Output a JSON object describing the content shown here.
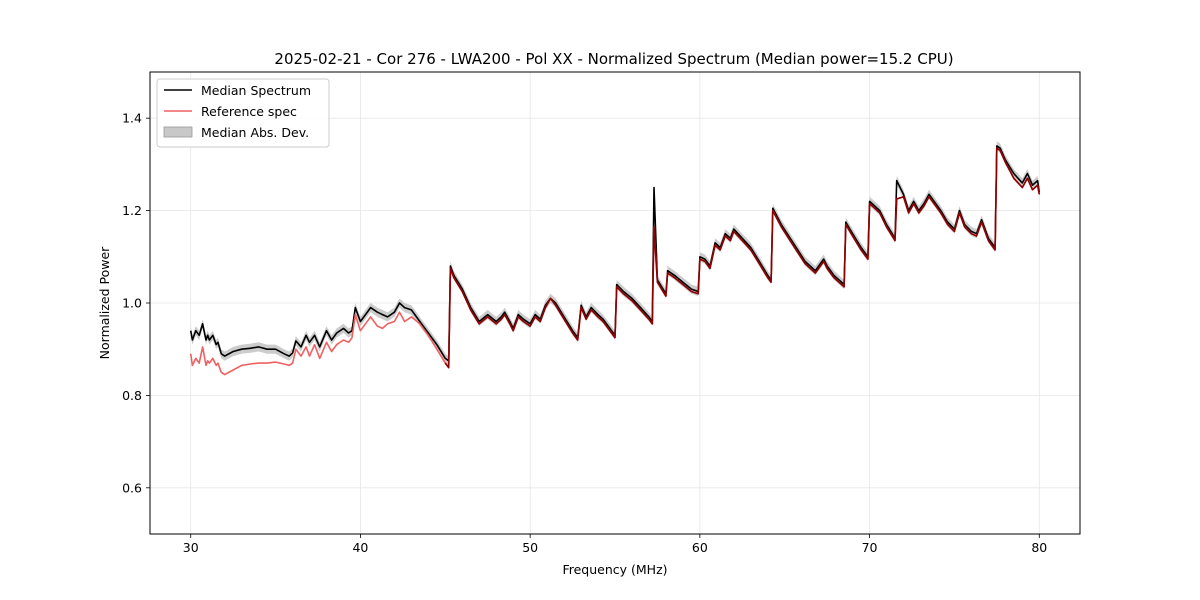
{
  "chart_data": {
    "type": "line",
    "title": "2025-02-21 - Cor 276 - LWA200 - Pol XX - Normalized Spectrum (Median power=15.2 CPU)",
    "xlabel": "Frequency (MHz)",
    "ylabel": "Normalized Power",
    "xlim": [
      27.6,
      82.4
    ],
    "ylim": [
      0.5,
      1.5
    ],
    "xticks": [
      30,
      40,
      50,
      60,
      70,
      80
    ],
    "yticks": [
      0.6,
      0.8,
      1.0,
      1.2,
      1.4
    ],
    "xtick_labels": [
      "30",
      "40",
      "50",
      "60",
      "70",
      "80"
    ],
    "ytick_labels": [
      "0.6",
      "0.8",
      "1.0",
      "1.2",
      "1.4"
    ],
    "grid": true,
    "legend_position": "top-left",
    "colors": {
      "median": "#000000",
      "reference": "#f06060",
      "reference_overlap": "#8b0000",
      "mad_band": "#b0b0b0"
    },
    "legend": [
      {
        "label": "Median Spectrum",
        "kind": "line",
        "color": "#000000"
      },
      {
        "label": "Reference spec",
        "kind": "line",
        "color": "#f06060"
      },
      {
        "label": "Median Abs. Dev.",
        "kind": "patch",
        "color": "#c8c8c8"
      }
    ],
    "series": [
      {
        "name": "Median Spectrum",
        "x": [
          30.0,
          30.1,
          30.3,
          30.5,
          30.7,
          30.9,
          31.0,
          31.1,
          31.3,
          31.5,
          31.6,
          31.8,
          32.0,
          32.5,
          33.0,
          33.5,
          34.0,
          34.5,
          35.0,
          35.5,
          35.8,
          36.0,
          36.2,
          36.5,
          36.8,
          37.0,
          37.3,
          37.6,
          38.0,
          38.3,
          38.6,
          39.0,
          39.3,
          39.5,
          39.7,
          40.0,
          40.3,
          40.6,
          41.0,
          41.3,
          41.6,
          42.0,
          42.3,
          42.6,
          43.0,
          43.5,
          44.0,
          44.5,
          45.0,
          45.2,
          45.3,
          45.5,
          46.0,
          46.5,
          47.0,
          47.5,
          48.0,
          48.3,
          48.5,
          48.8,
          49.0,
          49.3,
          49.6,
          50.0,
          50.3,
          50.6,
          50.9,
          51.2,
          51.5,
          52.0,
          52.5,
          52.8,
          53.0,
          53.3,
          53.6,
          54.0,
          54.3,
          54.6,
          55.0,
          55.1,
          55.5,
          56.0,
          56.5,
          57.0,
          57.2,
          57.3,
          57.5,
          58.0,
          58.1,
          58.5,
          59.0,
          59.5,
          59.9,
          60.0,
          60.3,
          60.6,
          60.9,
          61.2,
          61.5,
          61.8,
          62.0,
          62.5,
          63.0,
          63.5,
          64.0,
          64.2,
          64.3,
          64.8,
          65.5,
          66.2,
          66.8,
          67.3,
          67.5,
          67.9,
          68.5,
          68.6,
          69.0,
          69.5,
          69.9,
          70.0,
          70.3,
          70.6,
          71.0,
          71.5,
          71.6,
          72.0,
          72.3,
          72.6,
          72.9,
          73.2,
          73.5,
          73.8,
          74.2,
          74.6,
          75.0,
          75.3,
          75.6,
          76.0,
          76.3,
          76.6,
          77.0,
          77.4,
          77.5,
          77.7,
          78.0,
          78.5,
          79.0,
          79.3,
          79.6,
          79.9,
          80.0
        ],
        "values": [
          0.94,
          0.92,
          0.94,
          0.93,
          0.955,
          0.92,
          0.93,
          0.92,
          0.93,
          0.91,
          0.915,
          0.89,
          0.885,
          0.895,
          0.9,
          0.902,
          0.905,
          0.9,
          0.9,
          0.89,
          0.885,
          0.892,
          0.918,
          0.905,
          0.93,
          0.915,
          0.93,
          0.905,
          0.94,
          0.92,
          0.935,
          0.945,
          0.935,
          0.94,
          0.99,
          0.96,
          0.975,
          0.99,
          0.98,
          0.975,
          0.97,
          0.98,
          1.0,
          0.99,
          0.985,
          0.96,
          0.935,
          0.91,
          0.88,
          0.875,
          1.08,
          1.06,
          1.03,
          0.99,
          0.96,
          0.975,
          0.96,
          0.97,
          0.98,
          0.96,
          0.945,
          0.975,
          0.965,
          0.955,
          0.975,
          0.965,
          0.995,
          1.01,
          1.0,
          0.97,
          0.94,
          0.925,
          0.995,
          0.97,
          0.99,
          0.975,
          0.965,
          0.95,
          0.93,
          1.04,
          1.025,
          1.01,
          0.99,
          0.97,
          0.96,
          1.25,
          1.05,
          1.02,
          1.07,
          1.06,
          1.045,
          1.03,
          1.025,
          1.1,
          1.095,
          1.08,
          1.13,
          1.12,
          1.15,
          1.14,
          1.16,
          1.14,
          1.12,
          1.09,
          1.06,
          1.05,
          1.205,
          1.17,
          1.13,
          1.09,
          1.07,
          1.095,
          1.08,
          1.06,
          1.04,
          1.175,
          1.15,
          1.12,
          1.1,
          1.22,
          1.21,
          1.2,
          1.17,
          1.14,
          1.265,
          1.235,
          1.2,
          1.22,
          1.2,
          1.215,
          1.235,
          1.22,
          1.2,
          1.175,
          1.16,
          1.2,
          1.17,
          1.155,
          1.15,
          1.18,
          1.14,
          1.12,
          1.34,
          1.335,
          1.31,
          1.28,
          1.26,
          1.28,
          1.255,
          1.265,
          1.24
        ]
      },
      {
        "name": "Reference spec",
        "x": [
          30.0,
          30.1,
          30.3,
          30.5,
          30.7,
          30.9,
          31.0,
          31.1,
          31.3,
          31.5,
          31.6,
          31.8,
          32.0,
          32.5,
          33.0,
          33.5,
          34.0,
          34.5,
          35.0,
          35.5,
          35.8,
          36.0,
          36.2,
          36.5,
          36.8,
          37.0,
          37.3,
          37.6,
          38.0,
          38.3,
          38.6,
          39.0,
          39.3,
          39.5,
          39.7,
          40.0,
          40.3,
          40.6,
          41.0,
          41.3,
          41.6,
          42.0,
          42.3,
          42.6,
          43.0,
          43.5,
          44.0,
          44.5,
          45.0,
          45.2,
          45.3,
          45.5,
          46.0,
          46.5,
          47.0,
          47.5,
          48.0,
          48.3,
          48.5,
          48.8,
          49.0,
          49.3,
          49.6,
          50.0,
          50.3,
          50.6,
          50.9,
          51.2,
          51.5,
          52.0,
          52.5,
          52.8,
          53.0,
          53.3,
          53.6,
          54.0,
          54.3,
          54.6,
          55.0,
          55.1,
          55.5,
          56.0,
          56.5,
          57.0,
          57.2,
          57.3,
          57.5,
          58.0,
          58.1,
          58.5,
          59.0,
          59.5,
          59.9,
          60.0,
          60.3,
          60.6,
          60.9,
          61.2,
          61.5,
          61.8,
          62.0,
          62.5,
          63.0,
          63.5,
          64.0,
          64.2,
          64.3,
          64.8,
          65.5,
          66.2,
          66.8,
          67.3,
          67.5,
          67.9,
          68.5,
          68.6,
          69.0,
          69.5,
          69.9,
          70.0,
          70.3,
          70.6,
          71.0,
          71.5,
          71.6,
          72.0,
          72.3,
          72.6,
          72.9,
          73.2,
          73.5,
          73.8,
          74.2,
          74.6,
          75.0,
          75.3,
          75.6,
          76.0,
          76.3,
          76.6,
          77.0,
          77.4,
          77.5,
          77.7,
          78.0,
          78.5,
          79.0,
          79.3,
          79.6,
          79.9,
          80.0
        ],
        "values": [
          0.89,
          0.865,
          0.88,
          0.87,
          0.905,
          0.865,
          0.875,
          0.87,
          0.88,
          0.865,
          0.87,
          0.85,
          0.845,
          0.855,
          0.865,
          0.868,
          0.87,
          0.87,
          0.872,
          0.868,
          0.865,
          0.87,
          0.9,
          0.885,
          0.905,
          0.885,
          0.91,
          0.88,
          0.915,
          0.895,
          0.91,
          0.92,
          0.915,
          0.925,
          0.975,
          0.94,
          0.955,
          0.97,
          0.95,
          0.945,
          0.955,
          0.96,
          0.98,
          0.96,
          0.97,
          0.955,
          0.93,
          0.9,
          0.87,
          0.86,
          1.075,
          1.055,
          1.025,
          0.985,
          0.955,
          0.97,
          0.955,
          0.965,
          0.975,
          0.955,
          0.94,
          0.97,
          0.96,
          0.95,
          0.97,
          0.96,
          0.99,
          1.01,
          0.995,
          0.965,
          0.935,
          0.92,
          0.99,
          0.965,
          0.985,
          0.97,
          0.96,
          0.945,
          0.925,
          1.035,
          1.02,
          1.005,
          0.985,
          0.965,
          0.955,
          1.165,
          1.045,
          1.015,
          1.065,
          1.055,
          1.04,
          1.025,
          1.02,
          1.095,
          1.09,
          1.075,
          1.125,
          1.115,
          1.145,
          1.135,
          1.155,
          1.135,
          1.115,
          1.085,
          1.055,
          1.045,
          1.2,
          1.165,
          1.125,
          1.085,
          1.065,
          1.09,
          1.075,
          1.055,
          1.035,
          1.17,
          1.145,
          1.115,
          1.095,
          1.215,
          1.205,
          1.195,
          1.165,
          1.135,
          1.225,
          1.23,
          1.195,
          1.215,
          1.195,
          1.21,
          1.23,
          1.215,
          1.195,
          1.17,
          1.155,
          1.195,
          1.165,
          1.15,
          1.145,
          1.175,
          1.135,
          1.115,
          1.335,
          1.33,
          1.305,
          1.27,
          1.25,
          1.27,
          1.245,
          1.255,
          1.235
        ]
      }
    ],
    "mad_band_halfwidth": 0.01
  }
}
